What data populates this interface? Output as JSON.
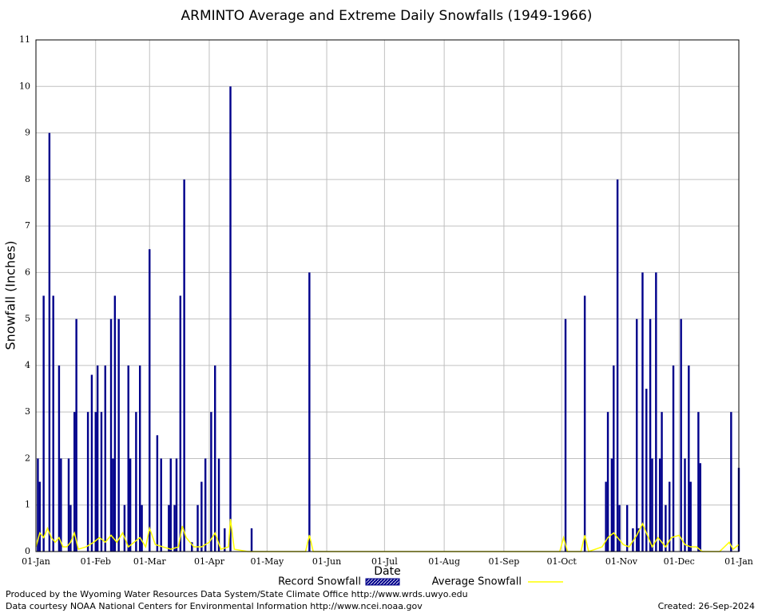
{
  "chart_data": {
    "type": "bar-line",
    "title": "ARMINTO Average and Extreme Daily Snowfalls (1949-1966)",
    "x_label": "Date",
    "y_label": "Snowfall (Inches)",
    "xlim": [
      0,
      365
    ],
    "xticks": [
      {
        "value": 0,
        "label": "01-Jan"
      },
      {
        "value": 31,
        "label": "01-Feb"
      },
      {
        "value": 59,
        "label": "01-Mar"
      },
      {
        "value": 90,
        "label": "01-Apr"
      },
      {
        "value": 120,
        "label": "01-May"
      },
      {
        "value": 151,
        "label": "01-Jun"
      },
      {
        "value": 181,
        "label": "01-Jul"
      },
      {
        "value": 212,
        "label": "01-Aug"
      },
      {
        "value": 243,
        "label": "01-Sep"
      },
      {
        "value": 273,
        "label": "01-Oct"
      },
      {
        "value": 304,
        "label": "01-Nov"
      },
      {
        "value": 334,
        "label": "01-Dec"
      },
      {
        "value": 365,
        "label": "01-Jan"
      }
    ],
    "ylim": [
      0,
      11
    ],
    "yticks": [
      0,
      1,
      2,
      3,
      4,
      5,
      6,
      7,
      8,
      9,
      10,
      11
    ],
    "grid": true,
    "series": [
      {
        "name": "Record Snowfall",
        "kind": "bar",
        "color": "#00008b",
        "x": [
          1,
          2,
          4,
          7,
          9,
          12,
          13,
          17,
          18,
          20,
          21,
          27,
          29,
          31,
          32,
          34,
          36,
          39,
          40,
          41,
          43,
          46,
          48,
          49,
          52,
          54,
          55,
          59,
          63,
          65,
          69,
          70,
          72,
          73,
          75,
          77,
          81,
          84,
          86,
          88,
          91,
          93,
          95,
          98,
          101,
          112,
          142,
          275,
          285,
          296,
          297,
          299,
          300,
          302,
          303,
          307,
          310,
          312,
          313,
          315,
          317,
          319,
          320,
          322,
          324,
          325,
          327,
          329,
          331,
          335,
          337,
          339,
          340,
          344,
          345,
          361,
          365
        ],
        "values": [
          2,
          1.5,
          5.5,
          9,
          5.5,
          4,
          2,
          2,
          1,
          3,
          5,
          3,
          3.8,
          3,
          4,
          3,
          4,
          5,
          2,
          5.5,
          5,
          1,
          4,
          2,
          3,
          4,
          1,
          6.5,
          2.5,
          2,
          1,
          2,
          1,
          2,
          5.5,
          8,
          0.2,
          1,
          1.5,
          2,
          3,
          4,
          2,
          0.5,
          10,
          0.5,
          6,
          5,
          5.5,
          1.5,
          3,
          2,
          4,
          8,
          1,
          1,
          0.5,
          5,
          0.5,
          6,
          3.5,
          5,
          2,
          6,
          2,
          3,
          1,
          1.5,
          4,
          5,
          2,
          4,
          1.5,
          3,
          1.9,
          3,
          1.8
        ]
      },
      {
        "name": "Average Snowfall",
        "kind": "line",
        "color": "#ffff00",
        "x": [
          0,
          2,
          4,
          6,
          8,
          10,
          12,
          14,
          16,
          18,
          20,
          22,
          26,
          30,
          33,
          36,
          39,
          42,
          45,
          48,
          51,
          54,
          57,
          59,
          62,
          66,
          70,
          74,
          76,
          78,
          82,
          86,
          90,
          93,
          96,
          100,
          101,
          103,
          110,
          140,
          142,
          144,
          272,
          274,
          276,
          283,
          285,
          287,
          294,
          297,
          300,
          302,
          305,
          308,
          312,
          315,
          318,
          320,
          323,
          327,
          330,
          334,
          337,
          340,
          343,
          346,
          355,
          360,
          362,
          365
        ],
        "values": [
          0.1,
          0.4,
          0.3,
          0.5,
          0.3,
          0.2,
          0.3,
          0.1,
          0.1,
          0.2,
          0.4,
          0.05,
          0.1,
          0.2,
          0.3,
          0.2,
          0.35,
          0.2,
          0.4,
          0.1,
          0.2,
          0.3,
          0.1,
          0.5,
          0.15,
          0.1,
          0.05,
          0.1,
          0.55,
          0.3,
          0.1,
          0.1,
          0.2,
          0.4,
          0.05,
          0.1,
          0.7,
          0.05,
          0,
          0,
          0.35,
          0,
          0,
          0.3,
          0,
          0,
          0.35,
          0,
          0.1,
          0.3,
          0.4,
          0.3,
          0.15,
          0.1,
          0.35,
          0.6,
          0.3,
          0.1,
          0.3,
          0.1,
          0.3,
          0.35,
          0.15,
          0.1,
          0.1,
          0,
          0,
          0.2,
          0.05,
          0.15
        ]
      }
    ],
    "footer": [
      "Produced by the Wyoming Water Resources Data System/State Climate Office http://www.wrds.uwyo.edu",
      "Data courtesy NOAA National Centers for Environmental Information http://www.ncei.noaa.gov"
    ],
    "created": "Created:  26-Sep-2024"
  }
}
